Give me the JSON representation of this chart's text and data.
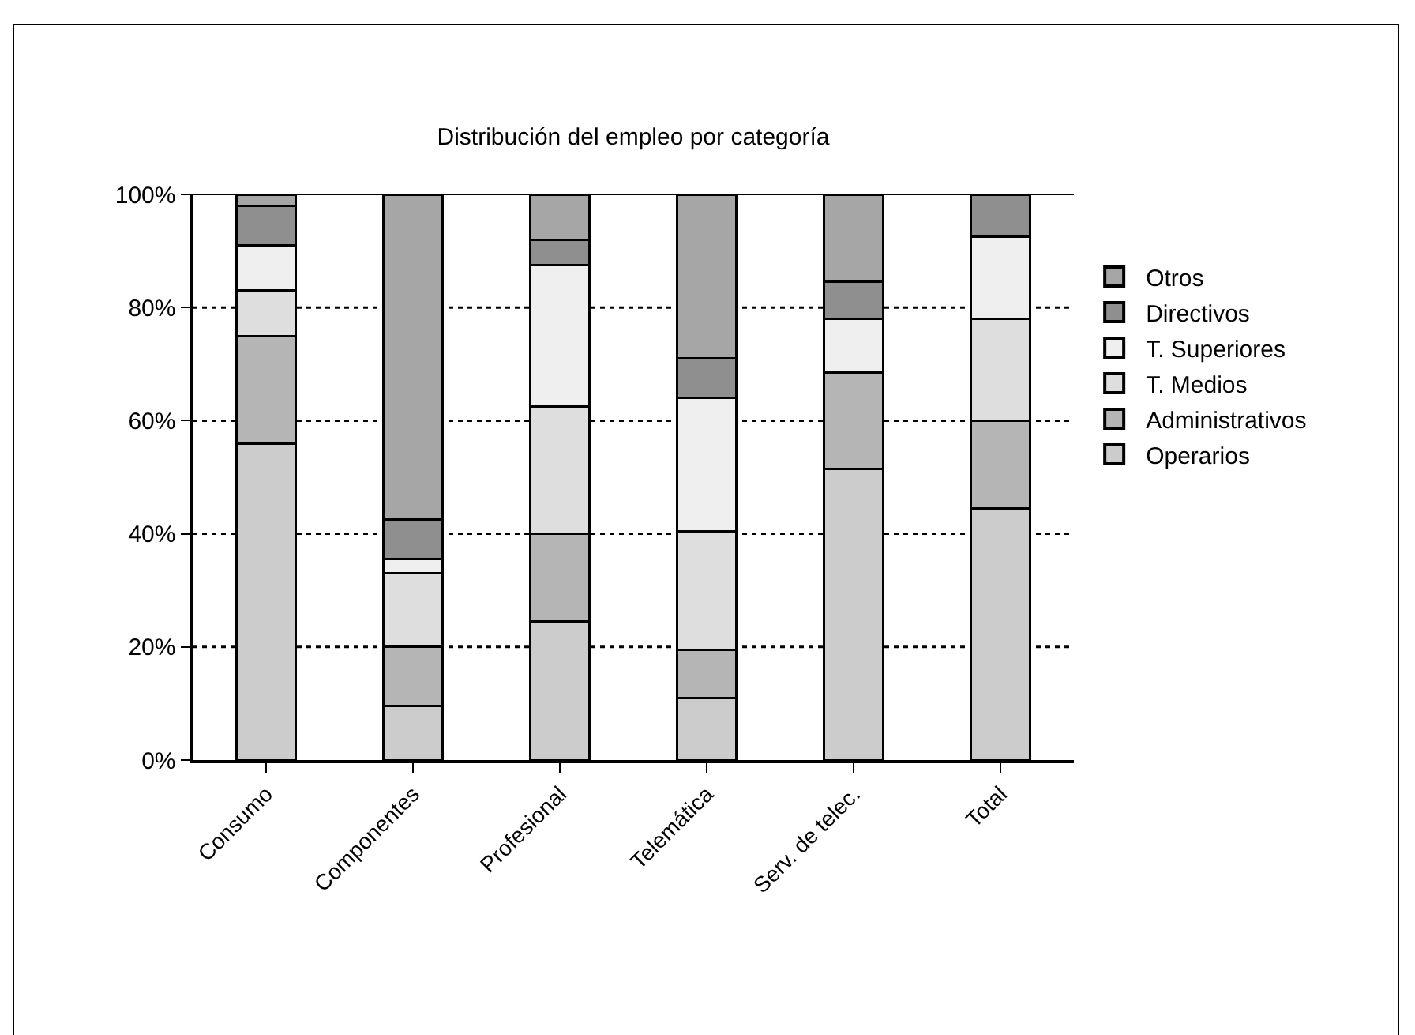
{
  "chart_data": {
    "type": "bar",
    "title": "Distribución del empleo por categoría",
    "categories": [
      "Consumo",
      "Componentes",
      "Profesional",
      "Telemática",
      "Serv. de telec.",
      "Total"
    ],
    "stacked": true,
    "series": [
      {
        "name": "Operarios",
        "color": "#cccccc",
        "values": [
          56,
          9.5,
          24.5,
          11,
          51.5,
          44.5
        ]
      },
      {
        "name": "Administrativos",
        "color": "#b5b5b5",
        "values": [
          19,
          10.5,
          15.5,
          8.5,
          17,
          15.5
        ]
      },
      {
        "name": "T. Medios",
        "color": "#dedede",
        "values": [
          8,
          13,
          22.5,
          21,
          null,
          18
        ]
      },
      {
        "name": "T. Superiores",
        "color": "#efefef",
        "values": [
          8,
          2.5,
          25,
          23.5,
          9.5,
          14.5
        ]
      },
      {
        "name": "Directivos",
        "color": "#8f8f8f",
        "values": [
          7,
          7,
          4.5,
          7,
          6.5,
          7.5
        ]
      },
      {
        "name": "Otros",
        "color": "#a6a6a6",
        "values": [
          2,
          57.5,
          8,
          29,
          15.5,
          null
        ]
      }
    ],
    "ylim": [
      0,
      100
    ],
    "yticks": [
      {
        "value": 0,
        "label": "0%"
      },
      {
        "value": 20,
        "label": "20%"
      },
      {
        "value": 40,
        "label": "40%"
      },
      {
        "value": 60,
        "label": "60%"
      },
      {
        "value": 80,
        "label": "80%"
      },
      {
        "value": 100,
        "label": "100%"
      }
    ],
    "grid": "y",
    "line_style": "dotted",
    "legend": "right"
  }
}
